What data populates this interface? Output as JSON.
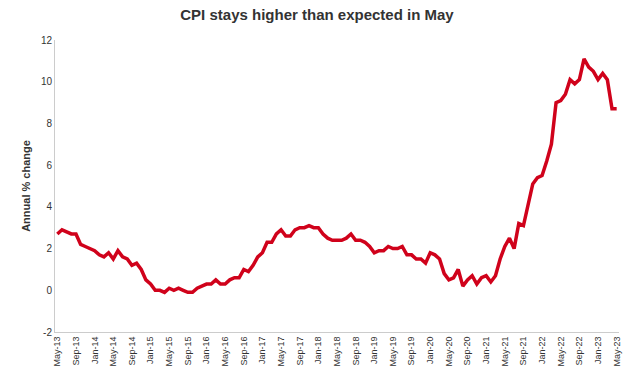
{
  "chart_data": {
    "type": "line",
    "title": "CPI stays higher than expected in May",
    "y_label": "Annual % change",
    "categories": [
      "May-13",
      null,
      null,
      null,
      "Sep-13",
      null,
      null,
      null,
      "Jan-14",
      null,
      null,
      null,
      "May-14",
      null,
      null,
      null,
      "Sep-14",
      null,
      null,
      null,
      "Jan-15",
      null,
      null,
      null,
      "May-15",
      null,
      null,
      null,
      "Sep-15",
      null,
      null,
      null,
      "Jan-16",
      null,
      null,
      null,
      "May-16",
      null,
      null,
      null,
      "Sep-16",
      null,
      null,
      null,
      "Jan-17",
      null,
      null,
      null,
      "May-17",
      null,
      null,
      null,
      "Sep-17",
      null,
      null,
      null,
      "Jan-18",
      null,
      null,
      null,
      "May-18",
      null,
      null,
      null,
      "Sep-18",
      null,
      null,
      null,
      "Jan-19",
      null,
      null,
      null,
      "May-19",
      null,
      null,
      null,
      "Sep-19",
      null,
      null,
      null,
      "Jan-20",
      null,
      null,
      null,
      "May-20",
      null,
      null,
      null,
      "Sep-20",
      null,
      null,
      null,
      "Jan-21",
      null,
      null,
      null,
      "May-21",
      null,
      null,
      null,
      "Sep-21",
      null,
      null,
      null,
      "Jan-22",
      null,
      null,
      null,
      "May-22",
      null,
      null,
      null,
      "Sep-22",
      null,
      null,
      null,
      "Jan-23",
      null,
      null,
      null,
      "May-23"
    ],
    "values": [
      2.7,
      2.9,
      2.8,
      2.7,
      2.7,
      2.2,
      2.1,
      2.0,
      1.9,
      1.7,
      1.6,
      1.8,
      1.5,
      1.9,
      1.6,
      1.5,
      1.2,
      1.3,
      1.0,
      0.5,
      0.3,
      0.0,
      0.0,
      -0.1,
      0.1,
      0.0,
      0.1,
      0.0,
      -0.1,
      -0.1,
      0.1,
      0.2,
      0.3,
      0.3,
      0.5,
      0.3,
      0.3,
      0.5,
      0.6,
      0.6,
      1.0,
      0.9,
      1.2,
      1.6,
      1.8,
      2.3,
      2.3,
      2.7,
      2.9,
      2.6,
      2.6,
      2.9,
      3.0,
      3.0,
      3.1,
      3.0,
      3.0,
      2.7,
      2.5,
      2.4,
      2.4,
      2.4,
      2.5,
      2.7,
      2.4,
      2.4,
      2.3,
      2.1,
      1.8,
      1.9,
      1.9,
      2.1,
      2.0,
      2.0,
      2.1,
      1.7,
      1.7,
      1.5,
      1.5,
      1.3,
      1.8,
      1.7,
      1.5,
      0.8,
      0.5,
      0.6,
      1.0,
      0.2,
      0.5,
      0.7,
      0.3,
      0.6,
      0.7,
      0.4,
      0.7,
      1.5,
      2.1,
      2.5,
      2.0,
      3.2,
      3.1,
      4.2,
      5.1,
      5.4,
      5.5,
      6.2,
      7.0,
      9.0,
      9.1,
      9.4,
      10.1,
      9.9,
      10.1,
      11.1,
      10.7,
      10.5,
      10.1,
      10.4,
      10.1,
      8.7,
      8.7
    ],
    "color": "#d0021b",
    "ylim": [
      -2,
      12
    ],
    "yticks": [
      -2,
      0,
      2,
      4,
      6,
      8,
      10,
      12
    ],
    "grid": false
  }
}
